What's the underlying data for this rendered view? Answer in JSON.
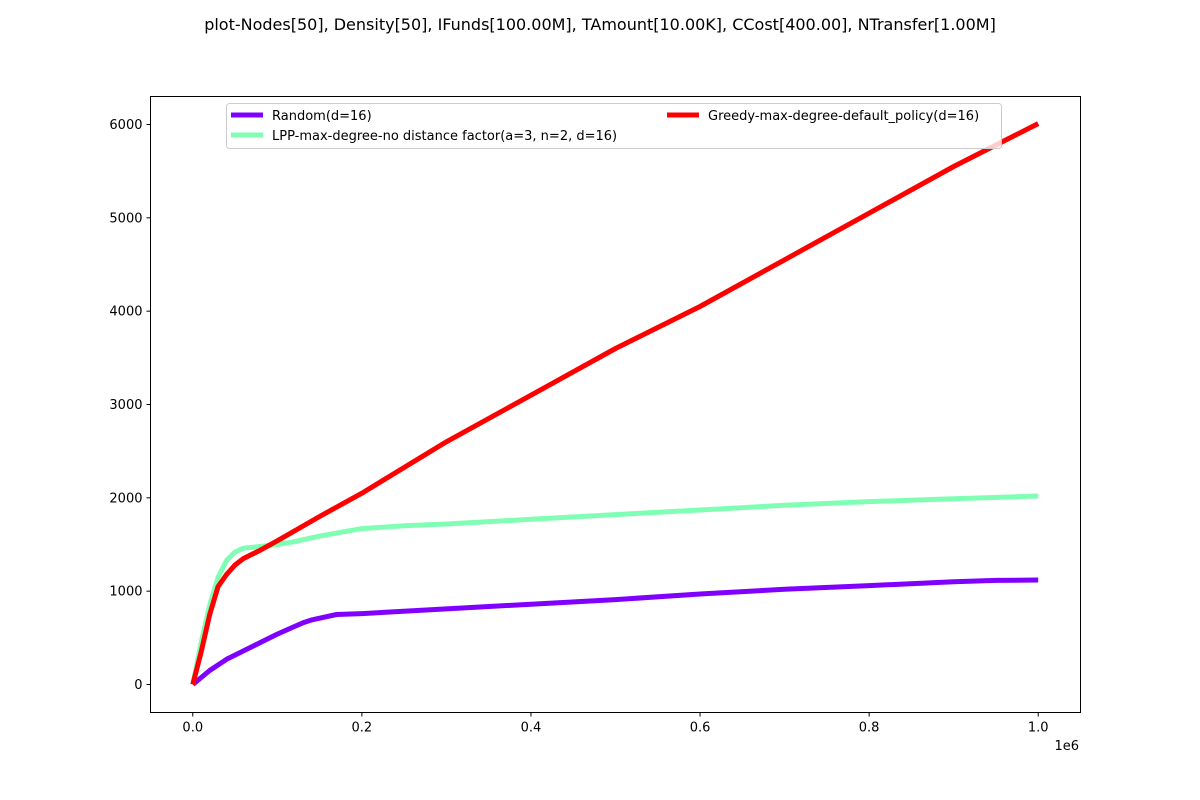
{
  "chart_data": {
    "type": "line",
    "title": "plot-Nodes[50], Density[50], IFunds[100.00M], TAmount[10.00K], CCost[400.00], NTransfer[1.00M]",
    "xlabel": "",
    "ylabel": "",
    "x_offset_label": "1e6",
    "xlim": [
      -50000,
      1050000
    ],
    "ylim": [
      -300,
      6300
    ],
    "x_ticks": [
      0,
      200000,
      400000,
      600000,
      800000,
      1000000
    ],
    "x_tick_labels": [
      "0.0",
      "0.2",
      "0.4",
      "0.6",
      "0.8",
      "1.0"
    ],
    "y_ticks": [
      0,
      1000,
      2000,
      3000,
      4000,
      5000,
      6000
    ],
    "y_tick_labels": [
      "0",
      "1000",
      "2000",
      "3000",
      "4000",
      "5000",
      "6000"
    ],
    "grid": false,
    "legend_position": "top",
    "series": [
      {
        "name": "Random(d=16)",
        "color": "#8000ff",
        "x": [
          0,
          20000,
          40000,
          60000,
          80000,
          100000,
          120000,
          130000,
          140000,
          150000,
          170000,
          200000,
          300000,
          400000,
          500000,
          600000,
          700000,
          800000,
          900000,
          950000,
          1000000
        ],
        "y": [
          0,
          150,
          270,
          360,
          450,
          540,
          620,
          660,
          690,
          710,
          750,
          760,
          810,
          860,
          910,
          970,
          1020,
          1060,
          1100,
          1115,
          1120
        ]
      },
      {
        "name": "LPP-max-degree-no distance factor(a=3, n=2, d=16)",
        "color": "#80ffb4",
        "x": [
          0,
          10000,
          20000,
          30000,
          40000,
          50000,
          60000,
          80000,
          100000,
          120000,
          150000,
          200000,
          250000,
          300000,
          400000,
          500000,
          600000,
          700000,
          800000,
          900000,
          1000000
        ],
        "y": [
          0,
          450,
          850,
          1150,
          1330,
          1420,
          1460,
          1480,
          1500,
          1530,
          1590,
          1670,
          1700,
          1720,
          1770,
          1820,
          1870,
          1920,
          1960,
          1990,
          2020
        ]
      },
      {
        "name": "Greedy-max-degree-default_policy(d=16)",
        "color": "#ff0000",
        "x": [
          0,
          10000,
          20000,
          30000,
          40000,
          50000,
          60000,
          80000,
          100000,
          150000,
          200000,
          300000,
          400000,
          500000,
          600000,
          700000,
          800000,
          900000,
          1000000
        ],
        "y": [
          0,
          350,
          750,
          1050,
          1180,
          1280,
          1350,
          1440,
          1540,
          1800,
          2050,
          2600,
          3100,
          3600,
          4050,
          4550,
          5050,
          5550,
          6010
        ]
      }
    ]
  }
}
